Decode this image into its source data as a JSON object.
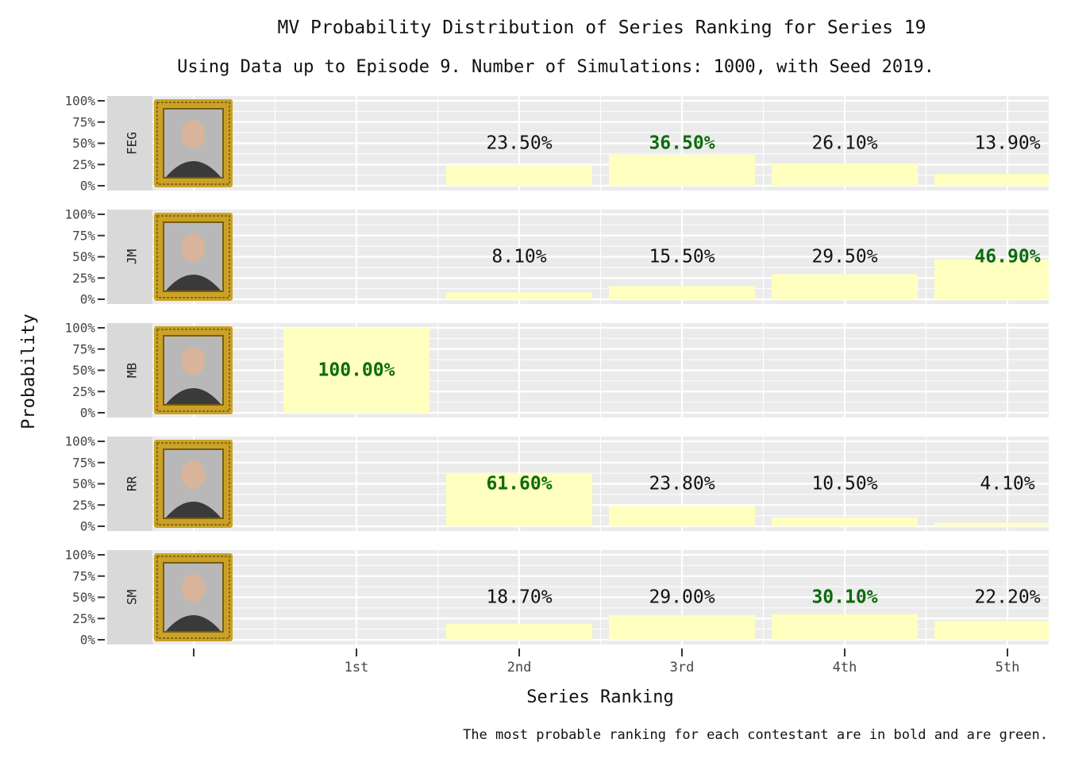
{
  "chart_data": {
    "type": "bar",
    "title": "MV Probability Distribution of Series Ranking for Series 19",
    "subtitle": "Using Data up to Episode 9. Number of Simulations: 1000, with Seed 2019.",
    "xlabel": "Series Ranking",
    "ylabel": "Probability",
    "caption": "The most probable ranking for each contestant are in bold and are green.",
    "categories": [
      "1st",
      "2nd",
      "3rd",
      "4th",
      "5th"
    ],
    "y_ticks": [
      "100%",
      "75%",
      "50%",
      "25%",
      "0%"
    ],
    "ylim": [
      0,
      100
    ],
    "grid": true,
    "bar_color": "#ffffc0",
    "panel_bg": "#ebebeb",
    "strip_bg": "#d9d9d9",
    "highlight_color": "#0b6b0b",
    "frame_color": "#c9a227",
    "series": [
      {
        "name": "FEG",
        "values": [
          0,
          23.5,
          36.5,
          26.1,
          13.9
        ],
        "labels": [
          "",
          "23.50%",
          "36.50%",
          "26.10%",
          "13.90%"
        ],
        "best": 2
      },
      {
        "name": "JM",
        "values": [
          0,
          8.1,
          15.5,
          29.5,
          46.9
        ],
        "labels": [
          "",
          "8.10%",
          "15.50%",
          "29.50%",
          "46.90%"
        ],
        "best": 4
      },
      {
        "name": "MB",
        "values": [
          100,
          0,
          0,
          0,
          0
        ],
        "labels": [
          "100.00%",
          "",
          "",
          "",
          ""
        ],
        "best": 0
      },
      {
        "name": "RR",
        "values": [
          0,
          61.6,
          23.8,
          10.5,
          4.1
        ],
        "labels": [
          "",
          "61.60%",
          "23.80%",
          "10.50%",
          "4.10%"
        ],
        "best": 1
      },
      {
        "name": "SM",
        "values": [
          0,
          18.7,
          29.0,
          30.1,
          22.2
        ],
        "labels": [
          "",
          "18.70%",
          "29.00%",
          "30.10%",
          "22.20%"
        ],
        "best": 3
      }
    ]
  }
}
